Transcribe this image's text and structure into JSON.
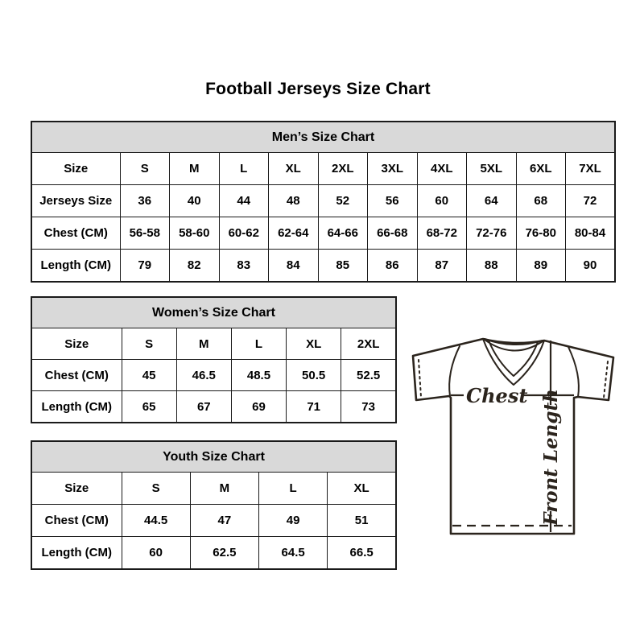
{
  "title": "Football Jerseys Size Chart",
  "tables": [
    {
      "id": "men",
      "title": "Men’s Size Chart",
      "header_label": "Size",
      "columns": [
        "S",
        "M",
        "L",
        "XL",
        "2XL",
        "3XL",
        "4XL",
        "5XL",
        "6XL",
        "7XL"
      ],
      "rows": [
        {
          "label": "Jerseys Size",
          "values": [
            "36",
            "40",
            "44",
            "48",
            "52",
            "56",
            "60",
            "64",
            "68",
            "72"
          ]
        },
        {
          "label": "Chest (CM)",
          "values": [
            "56-58",
            "58-60",
            "60-62",
            "62-64",
            "64-66",
            "66-68",
            "68-72",
            "72-76",
            "76-80",
            "80-84"
          ]
        },
        {
          "label": "Length (CM)",
          "values": [
            "79",
            "82",
            "83",
            "84",
            "85",
            "86",
            "87",
            "88",
            "89",
            "90"
          ]
        }
      ]
    },
    {
      "id": "women",
      "title": "Women’s Size Chart",
      "header_label": "Size",
      "columns": [
        "S",
        "M",
        "L",
        "XL",
        "2XL"
      ],
      "rows": [
        {
          "label": "Chest (CM)",
          "values": [
            "45",
            "46.5",
            "48.5",
            "50.5",
            "52.5"
          ]
        },
        {
          "label": "Length (CM)",
          "values": [
            "65",
            "67",
            "69",
            "71",
            "73"
          ]
        }
      ]
    },
    {
      "id": "youth",
      "title": "Youth Size Chart",
      "header_label": "Size",
      "columns": [
        "S",
        "M",
        "L",
        "XL"
      ],
      "rows": [
        {
          "label": "Chest (CM)",
          "values": [
            "44.5",
            "47",
            "49",
            "51"
          ]
        },
        {
          "label": "Length (CM)",
          "values": [
            "60",
            "62.5",
            "64.5",
            "66.5"
          ]
        }
      ]
    }
  ],
  "diagram": {
    "chest_label": "Chest",
    "front_length_label": "Front Length"
  },
  "colors": {
    "table_header_bg": "#d9d9d9",
    "table_border": "#1a1a1a",
    "diagram_stroke": "#2b241d",
    "text": "#000000",
    "background": "#ffffff"
  }
}
